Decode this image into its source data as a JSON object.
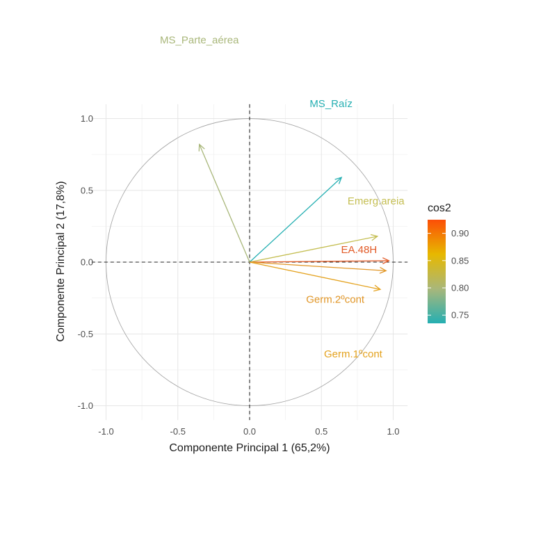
{
  "chart_data": {
    "type": "scatter",
    "subtype": "pca-variable-correlation-circle",
    "title": "",
    "xlabel": "Componente Principal 1 (65,2%)",
    "ylabel": "Componente Principal 2 (17,8%)",
    "xlim": [
      -1.1,
      1.1
    ],
    "ylim": [
      -1.1,
      1.1
    ],
    "x_ticks": [
      {
        "value": -1.0,
        "label": "-1.0"
      },
      {
        "value": -0.5,
        "label": "-0.5"
      },
      {
        "value": 0.0,
        "label": "0.0"
      },
      {
        "value": 0.5,
        "label": "0.5"
      },
      {
        "value": 1.0,
        "label": "1.0"
      }
    ],
    "y_ticks": [
      {
        "value": -1.0,
        "label": "-1.0"
      },
      {
        "value": -0.5,
        "label": "-0.5"
      },
      {
        "value": 0.0,
        "label": "0.0"
      },
      {
        "value": 0.5,
        "label": "0.5"
      },
      {
        "value": 1.0,
        "label": "1.0"
      }
    ],
    "grid": true,
    "unit_circle": true,
    "reference_lines": {
      "x": 0,
      "y": 0,
      "style": "dashed"
    },
    "variables": [
      {
        "name": "MS_Parte_aérea",
        "x": -0.35,
        "y": 0.82,
        "cos2": 0.79,
        "color": "#A9B77A"
      },
      {
        "name": "MS_Raíz",
        "x": 0.64,
        "y": 0.59,
        "cos2": 0.74,
        "color": "#25AFB2"
      },
      {
        "name": "Emerg.areia",
        "x": 0.89,
        "y": 0.18,
        "cos2": 0.82,
        "color": "#C4BE52"
      },
      {
        "name": "EA.48H",
        "x": 0.97,
        "y": 0.01,
        "cos2": 0.92,
        "color": "#E25B28"
      },
      {
        "name": "Germ.2ºcont",
        "x": 0.95,
        "y": -0.06,
        "cos2": 0.88,
        "color": "#E19627"
      },
      {
        "name": "Germ.1ºcont",
        "x": 0.91,
        "y": -0.19,
        "cos2": 0.86,
        "color": "#E4A21E"
      }
    ],
    "legend": {
      "title": "cos2",
      "placement": "right",
      "type": "gradient",
      "range": [
        0.735,
        0.925
      ],
      "ticks": [
        {
          "value": 0.75,
          "label": "0.75"
        },
        {
          "value": 0.8,
          "label": "0.80"
        },
        {
          "value": 0.85,
          "label": "0.85"
        },
        {
          "value": 0.9,
          "label": "0.90"
        }
      ],
      "gradient_colors": [
        "#25AFB2",
        "#A9B77A",
        "#E7B800",
        "#FC4E07"
      ]
    }
  }
}
